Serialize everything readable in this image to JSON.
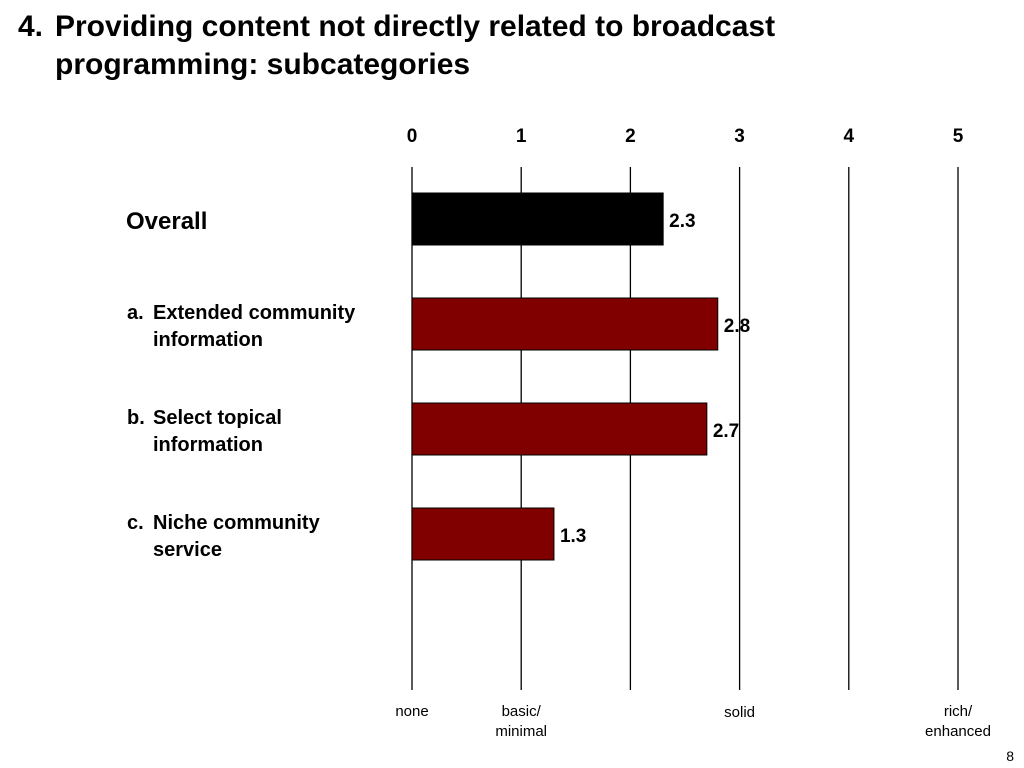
{
  "slide": {
    "title_number": "4.",
    "title_line1": "Providing content not directly related to broadcast",
    "title_line2": "programming: subcategories",
    "page_number": "8"
  },
  "chart_data": {
    "type": "bar",
    "orientation": "horizontal",
    "xlim": [
      0,
      5
    ],
    "ticks": [
      "0",
      "1",
      "2",
      "3",
      "4",
      "5"
    ],
    "grid": true,
    "categories": [
      {
        "prefix": "",
        "lines": [
          "Overall"
        ],
        "value": 2.3,
        "label": "2.3",
        "color": "#000000"
      },
      {
        "prefix": "a.",
        "lines": [
          "Extended community",
          "information"
        ],
        "value": 2.8,
        "label": "2.8",
        "color": "#800000"
      },
      {
        "prefix": "b.",
        "lines": [
          "Select topical",
          "information"
        ],
        "value": 2.7,
        "label": "2.7",
        "color": "#800000"
      },
      {
        "prefix": "c.",
        "lines": [
          "Niche community",
          "service"
        ],
        "value": 1.3,
        "label": "1.3",
        "color": "#800000"
      }
    ],
    "scale_descriptions": [
      {
        "value": 0,
        "lines": [
          "none"
        ]
      },
      {
        "value": 1,
        "lines": [
          "basic/",
          "minimal"
        ]
      },
      {
        "value": 3,
        "lines": [
          "solid"
        ]
      },
      {
        "value": 5,
        "lines": [
          "rich/",
          "enhanced"
        ]
      }
    ]
  }
}
